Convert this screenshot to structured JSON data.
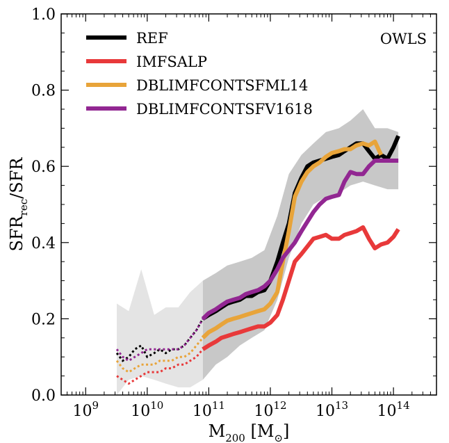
{
  "chart_data": {
    "type": "line",
    "title": "",
    "annotation": "OWLS",
    "x_scale": "log",
    "xlim": [
      400000000.0,
      500000000000000.0
    ],
    "ylim": [
      0.0,
      1.0
    ],
    "xlabel": {
      "main": "M",
      "sub": "200",
      "unit_open": " [M",
      "unit_sub": "⊙",
      "unit_close": "]"
    },
    "ylabel": {
      "main": "SFR",
      "sub": "rec",
      "tail": "/SFR"
    },
    "x_ticks": [
      {
        "base": "10",
        "exp": "9",
        "value": 1000000000.0
      },
      {
        "base": "10",
        "exp": "10",
        "value": 10000000000.0
      },
      {
        "base": "10",
        "exp": "11",
        "value": 100000000000.0
      },
      {
        "base": "10",
        "exp": "12",
        "value": 1000000000000.0
      },
      {
        "base": "10",
        "exp": "13",
        "value": 10000000000000.0
      },
      {
        "base": "10",
        "exp": "14",
        "value": 100000000000000.0
      }
    ],
    "y_ticks": [
      {
        "label": "0.0",
        "value": 0.0
      },
      {
        "label": "0.2",
        "value": 0.2
      },
      {
        "label": "0.4",
        "value": 0.4
      },
      {
        "label": "0.6",
        "value": 0.6
      },
      {
        "label": "0.8",
        "value": 0.8
      },
      {
        "label": "1.0",
        "value": 1.0
      }
    ],
    "legend_position": "top-left",
    "resolved_threshold": 80000000000.0,
    "scatter_band_low": {
      "x": [
        3200000000.0,
        5000000000.0,
        8000000000.0,
        13000000000.0,
        20000000000.0,
        32000000000.0,
        50000000000.0,
        80000000000.0
      ],
      "upper": [
        0.24,
        0.22,
        0.33,
        0.21,
        0.23,
        0.23,
        0.27,
        0.3
      ],
      "lower": [
        0.0,
        0.04,
        0.05,
        0.04,
        0.03,
        0.02,
        0.02,
        0.04
      ]
    },
    "scatter_band_high": {
      "x": [
        80000000000.0,
        130000000000.0,
        200000000000.0,
        320000000000.0,
        500000000000.0,
        800000000000.0,
        1300000000000.0,
        2000000000000.0,
        3200000000000.0,
        5000000000000.0,
        8000000000000.0,
        13000000000000.0,
        20000000000000.0,
        32000000000000.0,
        50000000000000.0,
        80000000000000.0,
        120000000000000.0
      ],
      "upper": [
        0.3,
        0.32,
        0.34,
        0.35,
        0.36,
        0.38,
        0.47,
        0.58,
        0.63,
        0.66,
        0.69,
        0.7,
        0.72,
        0.75,
        0.7,
        0.7,
        0.69
      ],
      "lower": [
        0.04,
        0.08,
        0.1,
        0.13,
        0.15,
        0.17,
        0.25,
        0.36,
        0.45,
        0.5,
        0.52,
        0.53,
        0.55,
        0.56,
        0.55,
        0.54,
        0.54
      ]
    },
    "series": [
      {
        "name": "REF",
        "color": "#000000",
        "x": [
          3200000000.0,
          4000000000.0,
          5000000000.0,
          6300000000.0,
          8000000000.0,
          10000000000.0,
          13000000000.0,
          16000000000.0,
          20000000000.0,
          25000000000.0,
          32000000000.0,
          40000000000.0,
          50000000000.0,
          63000000000.0,
          80000000000.0,
          100000000000.0,
          130000000000.0,
          160000000000.0,
          200000000000.0,
          250000000000.0,
          320000000000.0,
          400000000000.0,
          500000000000.0,
          630000000000.0,
          800000000000.0,
          1000000000000.0,
          1300000000000.0,
          1600000000000.0,
          2000000000000.0,
          2500000000000.0,
          3200000000000.0,
          4000000000000.0,
          5000000000000.0,
          6300000000000.0,
          8000000000000.0,
          10000000000000.0,
          13000000000000.0,
          16000000000000.0,
          20000000000000.0,
          25000000000000.0,
          32000000000000.0,
          40000000000000.0,
          50000000000000.0,
          63000000000000.0,
          80000000000000.0,
          100000000000000.0,
          120000000000000.0
        ],
        "y": [
          0.11,
          0.09,
          0.1,
          0.12,
          0.13,
          0.1,
          0.11,
          0.12,
          0.11,
          0.12,
          0.12,
          0.13,
          0.15,
          0.17,
          0.2,
          0.21,
          0.22,
          0.23,
          0.24,
          0.245,
          0.25,
          0.26,
          0.26,
          0.27,
          0.275,
          0.3,
          0.35,
          0.4,
          0.45,
          0.53,
          0.57,
          0.6,
          0.61,
          0.615,
          0.62,
          0.625,
          0.63,
          0.64,
          0.65,
          0.66,
          0.66,
          0.64,
          0.62,
          0.63,
          0.62,
          0.65,
          0.68
        ]
      },
      {
        "name": "IMFSALP",
        "color": "#e8393a",
        "x": [
          3200000000.0,
          4000000000.0,
          5000000000.0,
          6300000000.0,
          8000000000.0,
          10000000000.0,
          13000000000.0,
          16000000000.0,
          20000000000.0,
          25000000000.0,
          32000000000.0,
          40000000000.0,
          50000000000.0,
          63000000000.0,
          80000000000.0,
          100000000000.0,
          130000000000.0,
          160000000000.0,
          200000000000.0,
          250000000000.0,
          320000000000.0,
          400000000000.0,
          500000000000.0,
          630000000000.0,
          800000000000.0,
          1000000000000.0,
          1300000000000.0,
          1600000000000.0,
          2000000000000.0,
          2500000000000.0,
          3200000000000.0,
          4000000000000.0,
          5000000000000.0,
          6300000000000.0,
          8000000000000.0,
          10000000000000.0,
          13000000000000.0,
          16000000000000.0,
          20000000000000.0,
          25000000000000.0,
          32000000000000.0,
          40000000000000.0,
          50000000000000.0,
          63000000000000.0,
          80000000000000.0,
          100000000000000.0,
          120000000000000.0
        ],
        "y": [
          0.05,
          0.04,
          0.03,
          0.04,
          0.05,
          0.06,
          0.06,
          0.06,
          0.07,
          0.07,
          0.08,
          0.08,
          0.09,
          0.1,
          0.12,
          0.13,
          0.14,
          0.15,
          0.155,
          0.16,
          0.165,
          0.17,
          0.175,
          0.18,
          0.18,
          0.19,
          0.21,
          0.25,
          0.3,
          0.35,
          0.37,
          0.39,
          0.41,
          0.415,
          0.42,
          0.41,
          0.41,
          0.42,
          0.425,
          0.43,
          0.44,
          0.41,
          0.385,
          0.395,
          0.4,
          0.415,
          0.435
        ]
      },
      {
        "name": "DBLIMFCONTSFML14",
        "color": "#e8a43a",
        "x": [
          3200000000.0,
          4000000000.0,
          5000000000.0,
          6300000000.0,
          8000000000.0,
          10000000000.0,
          13000000000.0,
          16000000000.0,
          20000000000.0,
          25000000000.0,
          32000000000.0,
          40000000000.0,
          50000000000.0,
          63000000000.0,
          80000000000.0,
          100000000000.0,
          130000000000.0,
          160000000000.0,
          200000000000.0,
          250000000000.0,
          320000000000.0,
          400000000000.0,
          500000000000.0,
          630000000000.0,
          800000000000.0,
          1000000000000.0,
          1300000000000.0,
          1600000000000.0,
          2000000000000.0,
          2500000000000.0,
          3200000000000.0,
          4000000000000.0,
          5000000000000.0,
          6300000000000.0,
          8000000000000.0,
          10000000000000.0,
          13000000000000.0,
          16000000000000.0,
          20000000000000.0,
          25000000000000.0,
          32000000000000.0,
          40000000000000.0,
          50000000000000.0,
          63000000000000.0
        ],
        "y": [
          0.09,
          0.07,
          0.06,
          0.07,
          0.08,
          0.08,
          0.08,
          0.09,
          0.09,
          0.09,
          0.1,
          0.1,
          0.11,
          0.13,
          0.15,
          0.165,
          0.175,
          0.185,
          0.195,
          0.2,
          0.205,
          0.21,
          0.215,
          0.22,
          0.225,
          0.24,
          0.27,
          0.35,
          0.43,
          0.52,
          0.56,
          0.585,
          0.6,
          0.61,
          0.625,
          0.635,
          0.64,
          0.645,
          0.645,
          0.655,
          0.66,
          0.655,
          0.665,
          0.63
        ]
      },
      {
        "name": "DBLIMFCONTSFV1618",
        "color": "#922792",
        "x": [
          3200000000.0,
          4000000000.0,
          5000000000.0,
          6300000000.0,
          8000000000.0,
          10000000000.0,
          13000000000.0,
          16000000000.0,
          20000000000.0,
          25000000000.0,
          32000000000.0,
          40000000000.0,
          50000000000.0,
          63000000000.0,
          80000000000.0,
          100000000000.0,
          130000000000.0,
          160000000000.0,
          200000000000.0,
          250000000000.0,
          320000000000.0,
          400000000000.0,
          500000000000.0,
          630000000000.0,
          800000000000.0,
          1000000000000.0,
          1300000000000.0,
          1600000000000.0,
          2000000000000.0,
          2500000000000.0,
          3200000000000.0,
          4000000000000.0,
          5000000000000.0,
          6300000000000.0,
          8000000000000.0,
          10000000000000.0,
          13000000000000.0,
          16000000000000.0,
          20000000000000.0,
          25000000000000.0,
          32000000000000.0,
          40000000000000.0,
          50000000000000.0,
          63000000000000.0,
          80000000000000.0,
          100000000000000.0,
          120000000000000.0
        ],
        "y": [
          0.12,
          0.1,
          0.09,
          0.1,
          0.11,
          0.12,
          0.12,
          0.12,
          0.12,
          0.12,
          0.12,
          0.13,
          0.15,
          0.17,
          0.2,
          0.215,
          0.225,
          0.235,
          0.245,
          0.25,
          0.255,
          0.265,
          0.27,
          0.275,
          0.285,
          0.3,
          0.33,
          0.36,
          0.38,
          0.4,
          0.43,
          0.455,
          0.48,
          0.5,
          0.515,
          0.52,
          0.525,
          0.56,
          0.585,
          0.58,
          0.58,
          0.6,
          0.615,
          0.615,
          0.615,
          0.615,
          0.615
        ]
      }
    ]
  }
}
